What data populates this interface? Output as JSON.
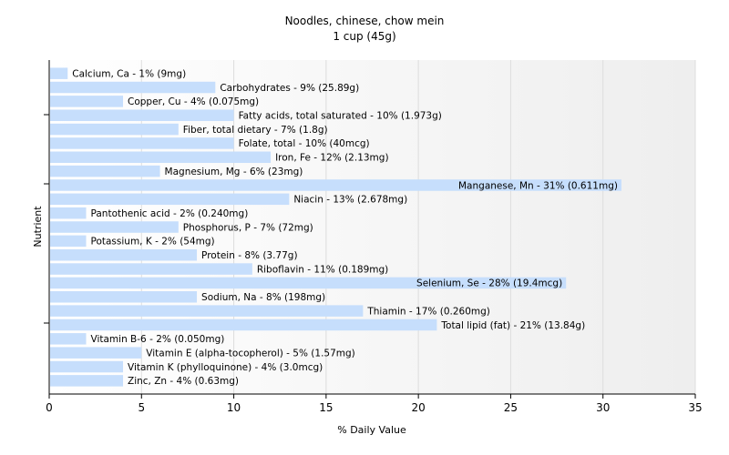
{
  "chart_data": {
    "type": "bar",
    "orientation": "horizontal",
    "title": "Noodles, chinese, chow mein",
    "subtitle": "1 cup (45g)",
    "xlabel": "% Daily Value",
    "ylabel": "Nutrient",
    "xlim": [
      0,
      35
    ],
    "xticks": [
      0,
      5,
      10,
      15,
      20,
      25,
      30,
      35
    ],
    "grid": "vertical",
    "bar_color": "#c6defc",
    "categories": [
      "Calcium, Ca",
      "Carbohydrates",
      "Copper, Cu",
      "Fatty acids, total saturated",
      "Fiber, total dietary",
      "Folate, total",
      "Iron, Fe",
      "Magnesium, Mg",
      "Manganese, Mn",
      "Niacin",
      "Pantothenic acid",
      "Phosphorus, P",
      "Potassium, K",
      "Protein",
      "Riboflavin",
      "Selenium, Se",
      "Sodium, Na",
      "Thiamin",
      "Total lipid (fat)",
      "Vitamin B-6",
      "Vitamin E (alpha-tocopherol)",
      "Vitamin K (phylloquinone)",
      "Zinc, Zn"
    ],
    "values": [
      1,
      9,
      4,
      10,
      7,
      10,
      12,
      6,
      31,
      13,
      2,
      7,
      2,
      8,
      11,
      28,
      8,
      17,
      21,
      2,
      5,
      4,
      4
    ],
    "labels": [
      "Calcium, Ca - 1% (9mg)",
      "Carbohydrates - 9% (25.89g)",
      "Copper, Cu - 4% (0.075mg)",
      "Fatty acids, total saturated - 10% (1.973g)",
      "Fiber, total dietary - 7% (1.8g)",
      "Folate, total - 10% (40mcg)",
      "Iron, Fe - 12% (2.13mg)",
      "Magnesium, Mg - 6% (23mg)",
      "Manganese, Mn - 31% (0.611mg)",
      "Niacin - 13% (2.678mg)",
      "Pantothenic acid - 2% (0.240mg)",
      "Phosphorus, P - 7% (72mg)",
      "Potassium, K - 2% (54mg)",
      "Protein - 8% (3.77g)",
      "Riboflavin - 11% (0.189mg)",
      "Selenium, Se - 28% (19.4mcg)",
      "Sodium, Na - 8% (198mg)",
      "Thiamin - 17% (0.260mg)",
      "Total lipid (fat) - 21% (13.84g)",
      "Vitamin B-6 - 2% (0.050mg)",
      "Vitamin E (alpha-tocopherol) - 5% (1.57mg)",
      "Vitamin K (phylloquinone) - 4% (3.0mcg)",
      "Zinc, Zn - 4% (0.63mg)"
    ],
    "inside_label_threshold": 25
  }
}
